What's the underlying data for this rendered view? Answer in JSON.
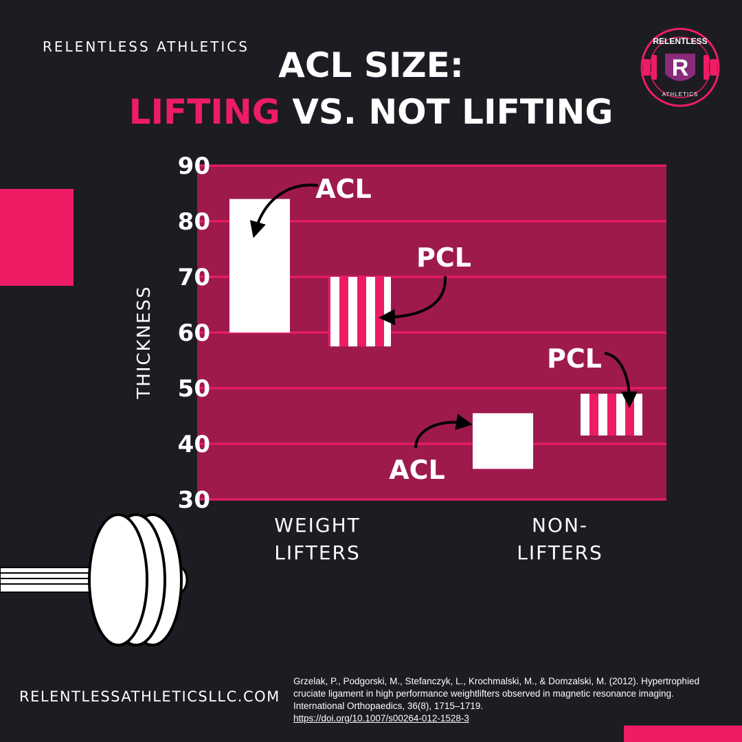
{
  "brand": "RELENTLESS ATHLETICS",
  "title": {
    "line1": "ACL SIZE:",
    "line2_accent": "LIFTING",
    "line2_rest": " VS. NOT LIFTING"
  },
  "logo": {
    "icon": "relentless-athletics-logo",
    "text_top": "RELENTLESS",
    "letter": "R",
    "text_bottom": "ATHLETICS"
  },
  "colors": {
    "accent": "#ee1c65",
    "plot_bg": "#9e1a4d",
    "background": "#1c1c22",
    "white": "#ffffff"
  },
  "website": "RELENTLESSATHLETICSLLC.COM",
  "citation": {
    "text": "Grzelak, P., Podgorski, M., Stefanczyk, L., Krochmalski, M., & Domzalski, M. (2012). Hypertrophied cruciate ligament in high performance weightlifters observed in magnetic resonance imaging. International Orthopaedics, 36(8), 1715–1719.",
    "doi": "https://doi.org/10.1007/s00264-012-1528-3"
  },
  "chart_data": {
    "type": "floating-bar",
    "ylabel": "THICKNESS",
    "ylim": [
      30,
      90
    ],
    "yticks": [
      30,
      40,
      50,
      60,
      70,
      80,
      90
    ],
    "grid": true,
    "categories": [
      {
        "line1": "WEIGHT",
        "line2": "LIFTERS"
      },
      {
        "line1": "NON-",
        "line2": "LIFTERS"
      }
    ],
    "series": [
      {
        "name": "ACL",
        "style": "solid-white",
        "ranges": [
          [
            60,
            84
          ],
          [
            35.5,
            45.5
          ]
        ]
      },
      {
        "name": "PCL",
        "style": "striped-pink",
        "ranges": [
          [
            57.5,
            70
          ],
          [
            41.5,
            49
          ]
        ]
      }
    ]
  }
}
